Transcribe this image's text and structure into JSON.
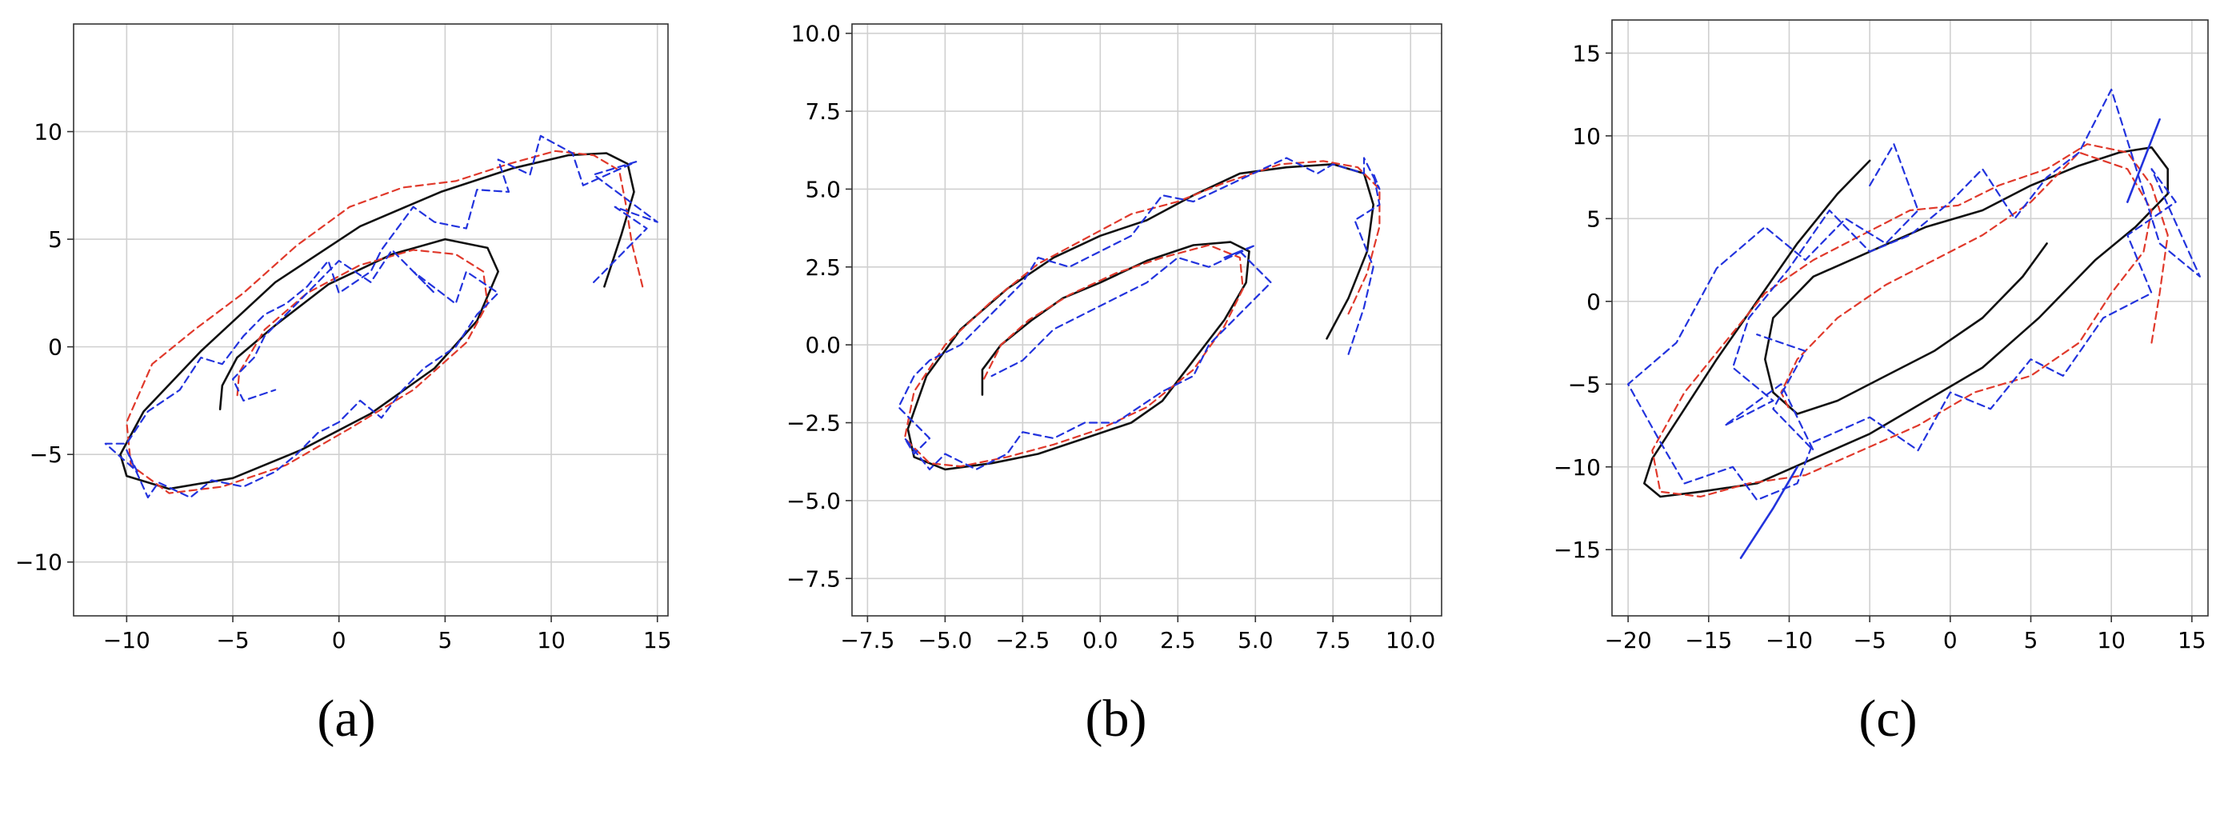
{
  "colors": {
    "true_trajectory": "#111111",
    "estimate_red": "#e0392b",
    "observation_blue": "#2233dd"
  },
  "chart_data": [
    {
      "type": "line",
      "caption": "(a)",
      "xlim": [
        -12.5,
        15.5
      ],
      "ylim": [
        -12.5,
        15
      ],
      "xticks": [
        -10,
        -5,
        0,
        5,
        10,
        15
      ],
      "xtick_labels": [
        "−10",
        "−5",
        "0",
        "5",
        "10",
        "15"
      ],
      "yticks": [
        -10,
        -5,
        0,
        5,
        10
      ],
      "ytick_labels": [
        "−10",
        "−5",
        "0",
        "5",
        "10"
      ],
      "grid": true,
      "series": [
        {
          "style": "solid",
          "color": "#111111",
          "x": [
            12.5,
            13.3,
            13.9,
            13.6,
            12.6,
            10.8,
            8.2,
            4.8,
            1.0,
            -3.0,
            -6.5,
            -9.2,
            -10.3,
            -10.0,
            -8.0,
            -5.0,
            -1.8,
            1.5,
            4.5,
            6.5,
            7.5,
            7.0,
            5.0,
            2.5,
            -0.5,
            -3.0,
            -4.8,
            -5.5,
            -5.6
          ],
          "y": [
            2.8,
            5.2,
            7.2,
            8.5,
            9.0,
            8.9,
            8.3,
            7.2,
            5.6,
            3.0,
            -0.2,
            -3.0,
            -5.0,
            -6.0,
            -6.6,
            -6.1,
            -4.8,
            -3.1,
            -1.0,
            1.2,
            3.5,
            4.6,
            5.0,
            4.3,
            2.9,
            1.0,
            -0.5,
            -1.8,
            -2.9
          ]
        },
        {
          "style": "dashed",
          "color": "#e0392b",
          "x": [
            14.3,
            13.8,
            13.5,
            13.2,
            12.0,
            10.2,
            8.0,
            5.5,
            3.0,
            0.5,
            -2.0,
            -4.5,
            -6.8,
            -8.8,
            -10.0,
            -9.8,
            -8.0,
            -5.5,
            -2.5,
            0.5,
            3.5,
            6.0,
            7.0,
            6.8,
            5.5,
            3.5,
            1.0,
            -1.5,
            -3.5,
            -4.7,
            -4.8
          ],
          "y": [
            2.8,
            4.8,
            6.7,
            8.2,
            8.9,
            9.1,
            8.5,
            7.7,
            7.4,
            6.5,
            4.7,
            2.5,
            0.8,
            -0.8,
            -3.5,
            -5.5,
            -6.8,
            -6.5,
            -5.5,
            -3.8,
            -2.0,
            0.2,
            2.0,
            3.5,
            4.3,
            4.5,
            3.8,
            2.5,
            0.8,
            -1.2,
            -2.4
          ]
        },
        {
          "style": "dashed",
          "color": "#2233dd",
          "x": [
            12.0,
            14.5,
            13.0,
            15.0,
            12.0,
            14.0,
            11.5,
            11.0,
            9.5,
            9.0,
            7.5,
            8.0,
            6.5,
            6.0,
            4.5,
            3.5,
            2.0,
            1.5,
            0.0,
            -0.5,
            -1.5,
            -2.5,
            -3.5,
            -4.5,
            -5.5,
            -6.5,
            -7.5,
            -9.0,
            -10.0,
            -11.0,
            -9.5,
            -10.0,
            -9.0,
            -8.5,
            -7.0,
            -6.0,
            -4.5,
            -3.0,
            -2.0,
            -1.0,
            0.0,
            1.0,
            2.0,
            3.0,
            4.0,
            5.5,
            6.5,
            7.5,
            6.0,
            5.5,
            3.5,
            4.5,
            2.5,
            1.5,
            0.0,
            -1.0,
            -2.5,
            -3.5,
            -4.0,
            -5.0,
            -4.5,
            -3.0
          ],
          "y": [
            3.0,
            5.5,
            6.5,
            5.8,
            8.0,
            8.6,
            7.5,
            9.0,
            9.8,
            8.0,
            8.7,
            7.2,
            7.3,
            5.5,
            5.8,
            6.5,
            4.5,
            3.5,
            2.5,
            4.0,
            2.8,
            2.0,
            1.5,
            0.5,
            -0.8,
            -0.5,
            -2.0,
            -3.0,
            -4.5,
            -4.5,
            -5.8,
            -4.8,
            -7.0,
            -6.3,
            -7.0,
            -6.2,
            -6.5,
            -5.8,
            -5.0,
            -4.0,
            -3.5,
            -2.5,
            -3.3,
            -2.0,
            -1.0,
            0.0,
            1.5,
            2.5,
            3.5,
            2.0,
            3.5,
            2.5,
            4.5,
            3.0,
            4.0,
            3.0,
            1.5,
            0.5,
            -0.5,
            -1.5,
            -2.5,
            -2.0
          ]
        }
      ]
    },
    {
      "type": "line",
      "caption": "(b)",
      "xlim": [
        -8,
        11
      ],
      "ylim": [
        -8.7,
        10.3
      ],
      "xticks": [
        -7.5,
        -5.0,
        -2.5,
        0.0,
        2.5,
        5.0,
        7.5,
        10.0
      ],
      "xtick_labels": [
        "−7.5",
        "−5.0",
        "−2.5",
        "0.0",
        "2.5",
        "5.0",
        "7.5",
        "10.0"
      ],
      "yticks": [
        -7.5,
        -5.0,
        -2.5,
        0.0,
        2.5,
        5.0,
        7.5,
        10.0
      ],
      "ytick_labels": [
        "−7.5",
        "−5.0",
        "−2.5",
        "0.0",
        "2.5",
        "5.0",
        "7.5",
        "10.0"
      ],
      "grid": true,
      "series": [
        {
          "style": "solid",
          "color": "#111111",
          "x": [
            7.3,
            8.0,
            8.6,
            8.8,
            8.5,
            7.5,
            6.0,
            4.5,
            3.0,
            1.5,
            0.0,
            -1.5,
            -3.0,
            -4.5,
            -5.6,
            -6.2,
            -6.0,
            -5.0,
            -3.5,
            -2.0,
            -0.5,
            1.0,
            2.0,
            3.0,
            4.0,
            4.7,
            4.8,
            4.2,
            3.0,
            1.5,
            0.0,
            -1.2,
            -2.2,
            -3.2,
            -3.8,
            -3.8
          ],
          "y": [
            0.2,
            1.5,
            3.0,
            4.5,
            5.5,
            5.8,
            5.7,
            5.5,
            4.8,
            4.0,
            3.5,
            2.8,
            1.8,
            0.5,
            -1.0,
            -2.7,
            -3.6,
            -4.0,
            -3.8,
            -3.5,
            -3.0,
            -2.5,
            -1.8,
            -0.5,
            0.8,
            2.0,
            3.0,
            3.3,
            3.2,
            2.7,
            2.0,
            1.5,
            0.8,
            0.0,
            -0.8,
            -1.6
          ]
        },
        {
          "style": "dashed",
          "color": "#e0392b",
          "x": [
            8.0,
            8.6,
            9.0,
            9.0,
            8.3,
            7.2,
            5.8,
            4.0,
            2.5,
            1.0,
            -0.5,
            -2.0,
            -3.5,
            -5.0,
            -6.0,
            -6.3,
            -5.5,
            -4.5,
            -3.0,
            -1.5,
            0.0,
            1.5,
            3.0,
            4.0,
            4.6,
            4.5,
            3.5,
            2.0,
            0.5,
            -1.0,
            -2.3,
            -3.2,
            -3.8
          ],
          "y": [
            1.0,
            2.3,
            3.8,
            5.0,
            5.7,
            5.9,
            5.8,
            5.2,
            4.6,
            4.2,
            3.4,
            2.6,
            1.4,
            0.0,
            -1.5,
            -3.0,
            -3.8,
            -3.9,
            -3.6,
            -3.2,
            -2.7,
            -2.0,
            -0.8,
            0.6,
            1.8,
            2.8,
            3.2,
            2.8,
            2.3,
            1.6,
            0.8,
            0.0,
            -1.2
          ]
        },
        {
          "style": "dashed",
          "color": "#2233dd",
          "x": [
            8.0,
            8.5,
            8.8,
            8.2,
            9.0,
            8.8,
            9.0,
            8.5,
            8.5,
            7.5,
            7.0,
            6.0,
            4.5,
            3.0,
            2.0,
            1.0,
            0.0,
            -1.0,
            -2.0,
            -2.5,
            -3.5,
            -4.5,
            -5.5,
            -6.0,
            -6.5,
            -5.5,
            -6.0,
            -6.3,
            -5.5,
            -5.0,
            -4.0,
            -3.0,
            -2.5,
            -1.5,
            -0.5,
            0.5,
            2.0,
            3.0,
            3.5,
            4.5,
            5.0,
            5.5,
            4.5,
            4.0,
            5.0,
            3.5,
            2.5,
            1.5,
            0.5,
            -0.5,
            -1.5,
            -2.5,
            -3.5
          ],
          "y": [
            -0.3,
            1.2,
            2.5,
            4.0,
            4.5,
            5.5,
            5.0,
            6.0,
            5.5,
            5.8,
            5.5,
            6.0,
            5.3,
            4.6,
            4.8,
            3.5,
            3.0,
            2.5,
            2.8,
            2.0,
            1.0,
            0.0,
            -0.5,
            -1.0,
            -2.0,
            -3.0,
            -3.5,
            -3.0,
            -4.0,
            -3.5,
            -4.0,
            -3.5,
            -2.8,
            -3.0,
            -2.5,
            -2.5,
            -1.5,
            -1.0,
            0.0,
            1.0,
            1.5,
            2.0,
            3.0,
            2.8,
            3.2,
            2.5,
            2.8,
            2.0,
            1.5,
            1.0,
            0.5,
            -0.5,
            -1.0
          ]
        }
      ]
    },
    {
      "type": "line",
      "caption": "(c)",
      "xlim": [
        -21,
        16
      ],
      "ylim": [
        -19,
        17
      ],
      "xticks": [
        -20,
        -15,
        -10,
        -5,
        0,
        5,
        10,
        15
      ],
      "xtick_labels": [
        "−20",
        "−15",
        "−10",
        "−5",
        "0",
        "5",
        "10",
        "15"
      ],
      "yticks": [
        -15,
        -10,
        -5,
        0,
        5,
        10,
        15
      ],
      "ytick_labels": [
        "−15",
        "−10",
        "−5",
        "0",
        "5",
        "10",
        "15"
      ],
      "grid": true,
      "series": [
        {
          "style": "solid",
          "color": "#111111",
          "x": [
            -5.0,
            -7.0,
            -9.5,
            -12.0,
            -14.5,
            -16.5,
            -18.5,
            -19.0,
            -18.0,
            -15.5,
            -12.0,
            -8.5,
            -5.0,
            -1.5,
            2.0,
            5.5,
            9.0,
            11.5,
            13.5,
            13.5,
            12.5,
            10.5,
            8.0,
            5.0,
            2.0,
            -1.5,
            -5.0,
            -8.5,
            -11.0,
            -11.5,
            -11.0,
            -9.5,
            -7.0,
            -4.0,
            -1.0,
            2.0,
            4.5,
            6.0
          ],
          "y": [
            8.5,
            6.5,
            3.5,
            0.0,
            -3.5,
            -6.5,
            -9.5,
            -11.0,
            -11.8,
            -11.5,
            -11.0,
            -9.5,
            -8.0,
            -6.0,
            -4.0,
            -1.0,
            2.5,
            4.5,
            6.5,
            8.0,
            9.3,
            9.0,
            8.2,
            7.0,
            5.5,
            4.5,
            3.0,
            1.5,
            -1.0,
            -3.5,
            -5.5,
            -6.8,
            -6.0,
            -4.5,
            -3.0,
            -1.0,
            1.5,
            3.5
          ]
        },
        {
          "style": "dashed",
          "color": "#e0392b",
          "x": [
            12.5,
            13.0,
            13.5,
            12.5,
            11.0,
            8.5,
            6.0,
            3.0,
            0.5,
            -2.5,
            -5.5,
            -8.5,
            -11.5,
            -14.0,
            -16.5,
            -18.5,
            -18.0,
            -15.5,
            -12.5,
            -9.0,
            -5.5,
            -2.0,
            1.5,
            5.0,
            8.0,
            10.0,
            12.0,
            12.5,
            11.0,
            8.0,
            5.0,
            2.0,
            -1.0,
            -4.0,
            -7.0,
            -9.5,
            -10.5,
            -10.0
          ],
          "y": [
            -2.5,
            0.5,
            4.0,
            7.0,
            9.0,
            9.5,
            8.0,
            7.0,
            5.8,
            5.5,
            4.0,
            2.5,
            0.5,
            -2.5,
            -5.5,
            -9.0,
            -11.5,
            -11.8,
            -11.0,
            -10.5,
            -9.0,
            -7.5,
            -5.5,
            -4.5,
            -2.5,
            0.5,
            3.0,
            5.5,
            8.0,
            9.0,
            6.0,
            4.0,
            2.5,
            1.0,
            -1.0,
            -3.5,
            -5.5,
            -6.5
          ]
        },
        {
          "style": "dashed",
          "color": "#2233dd",
          "x": [
            -5.0,
            -3.5,
            -2.0,
            -4.0,
            -6.5,
            -9.0,
            -11.5,
            -14.5,
            -17.0,
            -20.0,
            -18.0,
            -16.5,
            -13.5,
            -12.0,
            -9.5,
            -8.5,
            -5.0,
            -2.0,
            0.0,
            2.5,
            5.0,
            7.0,
            9.5,
            12.5,
            11.0,
            14.0,
            12.5,
            15.5,
            13.0,
            10.0,
            8.0,
            6.0,
            4.0,
            2.0,
            0.0,
            -2.5,
            -5.0,
            -7.5,
            -10.0,
            -12.5,
            -13.5,
            -11.0,
            -14.0,
            -10.5,
            -8.5,
            -11.0,
            -9.0,
            -12.0
          ],
          "y": [
            7.0,
            9.5,
            5.5,
            3.5,
            5.0,
            2.5,
            4.5,
            2.0,
            -2.5,
            -5.0,
            -8.5,
            -11.0,
            -10.0,
            -12.0,
            -11.0,
            -8.5,
            -7.0,
            -9.0,
            -5.5,
            -6.5,
            -3.5,
            -4.5,
            -1.0,
            0.5,
            4.0,
            6.0,
            8.0,
            1.5,
            3.5,
            12.8,
            9.0,
            7.5,
            5.0,
            8.0,
            6.0,
            4.0,
            3.0,
            5.5,
            2.0,
            -1.0,
            -4.0,
            -6.0,
            -7.5,
            -5.0,
            -9.0,
            -6.5,
            -3.0,
            -2.0
          ]
        },
        {
          "style": "solid",
          "color": "#2233dd",
          "x": [
            -13.0,
            -11.0,
            -9.5
          ],
          "y": [
            -15.5,
            -12.5,
            -10.0
          ]
        },
        {
          "style": "solid",
          "color": "#2233dd",
          "x": [
            13.0,
            11.0
          ],
          "y": [
            11.0,
            6.0
          ]
        }
      ]
    }
  ]
}
